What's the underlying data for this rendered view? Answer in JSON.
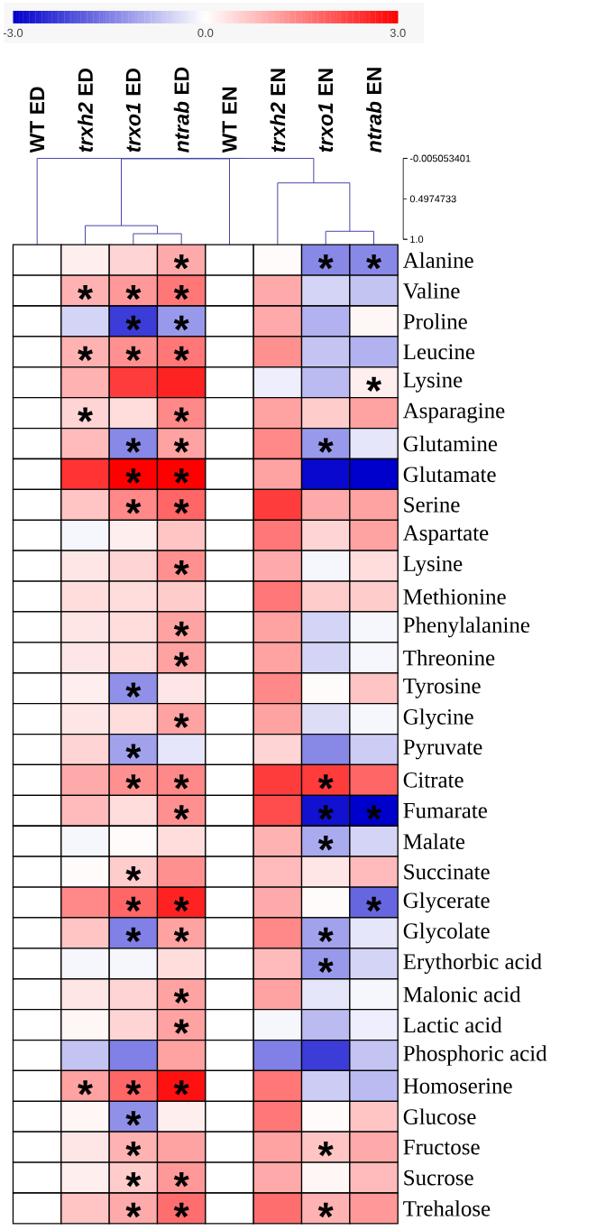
{
  "chart_data": {
    "type": "heatmap",
    "categories": [
      "WT ED",
      "*trxh2* ED",
      "*trxo1* ED",
      "*ntrab* ED",
      "WT EN",
      "*trxh2* EN",
      "*trxo1* EN",
      "*ntrab* EN"
    ],
    "y_categories": [
      "Alanine",
      "Valine",
      "Proline",
      "Leucine",
      "Lysine",
      "Asparagine",
      "Glutamine",
      "Glutamate",
      "Serine",
      "Aspartate",
      "Lysine",
      "Methionine",
      "Phenylalanine",
      "Threonine",
      "Tyrosine",
      "Glycine",
      "Pyruvate",
      "Citrate",
      "Fumarate",
      "Malate",
      "Succinate",
      "Glycerate",
      "Glycolate",
      "Erythorbic acid",
      "Malonic acid",
      "Lactic acid",
      "Phosphoric acid",
      "Homoserine",
      "Glucose",
      "Fructose",
      "Sucrose",
      "Trehalose"
    ],
    "cells": [
      [
        0,
        0.2,
        0.5,
        1.0,
        0,
        0.05,
        -1.4,
        -1.4
      ],
      [
        0,
        0.9,
        1.2,
        1.6,
        0,
        1.0,
        -0.5,
        -0.7
      ],
      [
        0,
        -0.5,
        -2.3,
        -1.2,
        0,
        1.0,
        -0.9,
        0.1
      ],
      [
        0,
        0.9,
        1.3,
        1.6,
        0,
        1.3,
        -0.7,
        -0.9
      ],
      [
        0,
        0.9,
        2.3,
        2.6,
        0,
        -0.2,
        -0.8,
        0.2
      ],
      [
        0,
        0.5,
        0.4,
        1.4,
        0,
        1.1,
        0.6,
        1.1
      ],
      [
        0,
        0.8,
        -1.4,
        1.1,
        0,
        1.4,
        -1.2,
        -0.3
      ],
      [
        0,
        2.4,
        3.0,
        3.0,
        0,
        1.1,
        -2.9,
        -3.0
      ],
      [
        0,
        0.7,
        1.4,
        1.8,
        0,
        2.3,
        1.0,
        1.1
      ],
      [
        0,
        -0.1,
        0.2,
        0.7,
        0,
        1.6,
        0.5,
        1.1
      ],
      [
        0,
        0.3,
        0.5,
        1.3,
        0,
        1.0,
        -0.1,
        0.4
      ],
      [
        0,
        0.4,
        0.4,
        0.6,
        0,
        1.6,
        0.6,
        0.6
      ],
      [
        0,
        0.3,
        0.4,
        1.1,
        0,
        1.1,
        -0.5,
        -0.1
      ],
      [
        0,
        0.3,
        0.4,
        1.1,
        0,
        1.1,
        -0.5,
        -0.1
      ],
      [
        0,
        0.2,
        -1.3,
        0.3,
        0,
        1.4,
        0.05,
        0.7
      ],
      [
        0,
        0.3,
        0.4,
        1.1,
        0,
        1.1,
        -0.4,
        -0.1
      ],
      [
        0,
        0.5,
        -1.1,
        -0.3,
        0,
        0.5,
        -1.4,
        -0.6
      ],
      [
        0,
        1.0,
        1.3,
        1.4,
        0,
        2.3,
        2.3,
        1.8
      ],
      [
        0,
        0.8,
        0.4,
        1.3,
        0,
        2.1,
        -2.8,
        -3.0
      ],
      [
        0,
        -0.1,
        0.05,
        0.4,
        0,
        0.9,
        -1.0,
        -0.5
      ],
      [
        0,
        0.05,
        0.6,
        1.3,
        0,
        0.8,
        0.3,
        0.8
      ],
      [
        0,
        1.4,
        1.8,
        2.6,
        0,
        1.0,
        0.05,
        -1.8
      ],
      [
        0,
        0.7,
        -1.5,
        1.1,
        0,
        1.4,
        -1.1,
        -0.3
      ],
      [
        0,
        -0.1,
        -0.1,
        0.4,
        0,
        0.8,
        -1.2,
        -0.5
      ],
      [
        0,
        0.3,
        0.5,
        1.1,
        0,
        1.1,
        -0.3,
        -0.1
      ],
      [
        0,
        0.1,
        0.5,
        1.1,
        0,
        -0.1,
        -0.8,
        -0.2
      ],
      [
        0,
        -0.7,
        -1.5,
        1.1,
        0,
        -1.5,
        -2.3,
        -0.7
      ],
      [
        0,
        1.1,
        1.8,
        2.8,
        0,
        1.6,
        -0.6,
        -0.8
      ],
      [
        0,
        0.1,
        -1.3,
        0.2,
        0,
        1.6,
        0.05,
        0.7
      ],
      [
        0,
        0.3,
        0.9,
        1.1,
        0,
        1.1,
        0.7,
        1.0
      ],
      [
        0,
        0.2,
        0.6,
        1.2,
        0,
        1.0,
        0.1,
        0.8
      ],
      [
        0,
        0.7,
        1.0,
        1.7,
        0,
        1.7,
        0.9,
        1.2
      ]
    ],
    "cell_labels": [
      [
        null,
        null,
        null,
        "*",
        null,
        null,
        "*",
        "*"
      ],
      [
        null,
        "*",
        "*",
        "*",
        null,
        null,
        null,
        null
      ],
      [
        null,
        null,
        "*",
        "*",
        null,
        null,
        null,
        null
      ],
      [
        null,
        "*",
        "*",
        "*",
        null,
        null,
        null,
        null
      ],
      [
        null,
        null,
        null,
        null,
        null,
        null,
        null,
        "*"
      ],
      [
        null,
        "*",
        null,
        "*",
        null,
        null,
        null,
        null
      ],
      [
        null,
        null,
        "*",
        "*",
        null,
        null,
        "*",
        null
      ],
      [
        null,
        null,
        "*",
        "*",
        null,
        null,
        null,
        null
      ],
      [
        null,
        null,
        "*",
        "*",
        null,
        null,
        null,
        null
      ],
      [
        null,
        null,
        null,
        null,
        null,
        null,
        null,
        null
      ],
      [
        null,
        null,
        null,
        "*",
        null,
        null,
        null,
        null
      ],
      [
        null,
        null,
        null,
        null,
        null,
        null,
        null,
        null
      ],
      [
        null,
        null,
        null,
        "*",
        null,
        null,
        null,
        null
      ],
      [
        null,
        null,
        null,
        "*",
        null,
        null,
        null,
        null
      ],
      [
        null,
        null,
        "*",
        null,
        null,
        null,
        null,
        null
      ],
      [
        null,
        null,
        null,
        "*",
        null,
        null,
        null,
        null
      ],
      [
        null,
        null,
        "*",
        null,
        null,
        null,
        null,
        null
      ],
      [
        null,
        null,
        "*",
        "*",
        null,
        null,
        "*",
        null
      ],
      [
        null,
        null,
        null,
        "*",
        null,
        null,
        "*",
        "*"
      ],
      [
        null,
        null,
        null,
        null,
        null,
        null,
        "*",
        null
      ],
      [
        null,
        null,
        "*",
        null,
        null,
        null,
        null,
        null
      ],
      [
        null,
        null,
        "*",
        "*",
        null,
        null,
        null,
        "*"
      ],
      [
        null,
        null,
        "*",
        "*",
        null,
        null,
        "*",
        null
      ],
      [
        null,
        null,
        null,
        null,
        null,
        null,
        "*",
        null
      ],
      [
        null,
        null,
        null,
        "*",
        null,
        null,
        null,
        null
      ],
      [
        null,
        null,
        null,
        "*",
        null,
        null,
        null,
        null
      ],
      [
        null,
        null,
        null,
        null,
        null,
        null,
        null,
        null
      ],
      [
        null,
        "*",
        "*",
        "*",
        null,
        null,
        null,
        null
      ],
      [
        null,
        null,
        "*",
        null,
        null,
        null,
        null,
        null
      ],
      [
        null,
        null,
        "*",
        null,
        null,
        null,
        "*",
        null
      ],
      [
        null,
        null,
        "*",
        "*",
        null,
        null,
        null,
        null
      ],
      [
        null,
        null,
        "*",
        "*",
        null,
        null,
        "*",
        null
      ]
    ],
    "clim": [
      -3,
      3
    ],
    "cticks": [
      {
        "value": -3,
        "label": "-3.0"
      },
      {
        "value": 0,
        "label": "0.0"
      },
      {
        "value": 3,
        "label": "3.0"
      }
    ],
    "annotations": [
      "-0.005053401",
      "0.4974733",
      "1.0"
    ]
  }
}
